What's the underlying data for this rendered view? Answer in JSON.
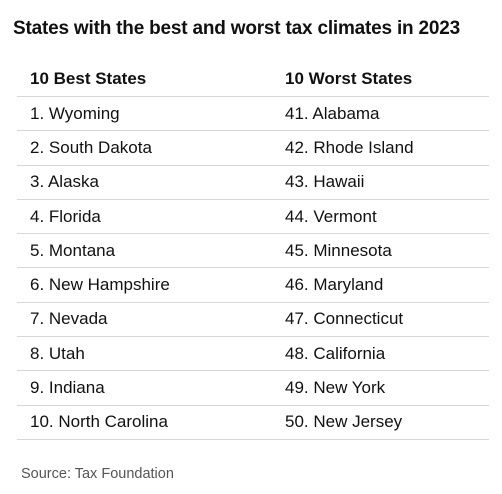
{
  "title": "States with the best and worst tax climates in 2023",
  "table": {
    "headers": [
      "10 Best States",
      "10 Worst States"
    ],
    "rows": [
      [
        "1. Wyoming",
        "41. Alabama"
      ],
      [
        "2. South Dakota",
        "42. Rhode Island"
      ],
      [
        "3. Alaska",
        "43. Hawaii"
      ],
      [
        "4. Florida",
        "44. Vermont"
      ],
      [
        "5. Montana",
        "45. Minnesota"
      ],
      [
        "6. New Hampshire",
        "46. Maryland"
      ],
      [
        "7. Nevada",
        "47. Connecticut"
      ],
      [
        "8. Utah",
        "48. California"
      ],
      [
        "9. Indiana",
        "49. New York"
      ],
      [
        "10. North Carolina",
        "50. New Jersey"
      ]
    ]
  },
  "source": "Source: Tax Foundation"
}
